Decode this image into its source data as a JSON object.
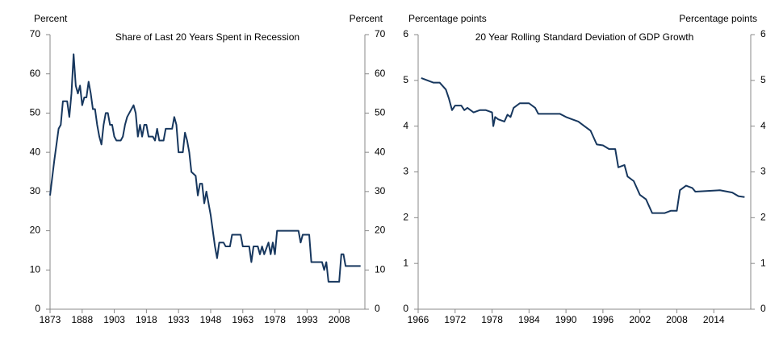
{
  "chart_data": [
    {
      "type": "line",
      "title": "Share of Last 20 Years Spent in Recession",
      "y_label": "Percent",
      "y2_label": "Percent",
      "color": "#17375e",
      "grid": false,
      "x": [
        1873,
        1875,
        1877,
        1878,
        1879,
        1881,
        1882,
        1883,
        1884,
        1885,
        1886,
        1887,
        1888,
        1889,
        1890,
        1891,
        1892,
        1893,
        1894,
        1895,
        1896,
        1897,
        1898,
        1899,
        1900,
        1901,
        1902,
        1903,
        1904,
        1906,
        1907,
        1908,
        1909,
        1910,
        1912,
        1913,
        1914,
        1915,
        1916,
        1917,
        1918,
        1919,
        1921,
        1922,
        1923,
        1924,
        1926,
        1927,
        1928,
        1930,
        1931,
        1932,
        1933,
        1935,
        1936,
        1937,
        1938,
        1939,
        1941,
        1942,
        1943,
        1944,
        1945,
        1946,
        1947,
        1948,
        1949,
        1950,
        1951,
        1952,
        1954,
        1955,
        1957,
        1958,
        1962,
        1963,
        1966,
        1967,
        1968,
        1970,
        1971,
        1972,
        1973,
        1975,
        1976,
        1977,
        1978,
        1979,
        1989,
        1990,
        1991,
        1994,
        1995,
        2000,
        2001,
        2002,
        2003,
        2008,
        2009,
        2010,
        2011,
        2018
      ],
      "values": [
        29,
        38,
        46,
        47,
        53,
        53,
        49,
        55,
        65,
        57,
        55,
        57,
        52,
        54,
        54,
        58,
        55,
        51,
        51,
        47,
        44,
        42,
        47,
        50,
        50,
        47,
        47,
        44,
        43,
        43,
        44,
        47,
        49,
        50,
        52,
        50,
        44,
        47,
        44,
        47,
        47,
        44,
        44,
        43,
        46,
        43,
        43,
        46,
        46,
        46,
        49,
        47,
        40,
        40,
        45,
        43,
        40,
        35,
        34,
        29,
        32,
        32,
        27,
        30,
        27,
        24,
        20,
        16,
        13,
        17,
        17,
        16,
        16,
        19,
        19,
        16,
        16,
        12,
        16,
        16,
        14,
        16,
        14,
        17,
        14,
        17,
        14,
        20,
        20,
        17,
        19,
        19,
        12,
        12,
        10,
        12,
        7,
        7,
        14,
        14,
        11,
        11
      ],
      "xlim": [
        1873,
        2020
      ],
      "xticks": [
        1873,
        1888,
        1903,
        1918,
        1933,
        1948,
        1963,
        1978,
        1993,
        2008
      ],
      "ylim": [
        0,
        70
      ],
      "yticks": [
        0,
        10,
        20,
        30,
        40,
        50,
        60,
        70
      ],
      "y2lim": [
        0,
        70
      ],
      "y2ticks": [
        0,
        10,
        20,
        30,
        40,
        50,
        60,
        70
      ]
    },
    {
      "type": "line",
      "title": "20 Year Rolling Standard Deviation  of GDP Growth",
      "y_label": "Percentage  points",
      "y2_label": "Percentage  points",
      "color": "#17375e",
      "grid": false,
      "x": [
        1966.5,
        1967.5,
        1968.5,
        1969.5,
        1970.5,
        1971,
        1971.5,
        1972,
        1973,
        1973.5,
        1974,
        1975,
        1976,
        1977,
        1978,
        1978.2,
        1978.5,
        1979,
        1980,
        1980.5,
        1981,
        1981.5,
        1982.5,
        1984,
        1985,
        1985.5,
        1989,
        1990,
        1991,
        1992,
        1993,
        1994,
        1995,
        1996,
        1997,
        1998,
        1998.5,
        1999.5,
        2000,
        2001,
        2002,
        2003,
        2004,
        2005,
        2006,
        2007,
        2008,
        2008.5,
        2009.5,
        2010.5,
        2011,
        2015,
        2017,
        2018,
        2019
      ],
      "values": [
        5.05,
        5.0,
        4.95,
        4.95,
        4.8,
        4.6,
        4.35,
        4.45,
        4.45,
        4.35,
        4.4,
        4.3,
        4.35,
        4.35,
        4.3,
        4.0,
        4.2,
        4.15,
        4.1,
        4.25,
        4.2,
        4.4,
        4.5,
        4.5,
        4.4,
        4.27,
        4.27,
        4.2,
        4.15,
        4.1,
        4.0,
        3.9,
        3.6,
        3.58,
        3.5,
        3.5,
        3.1,
        3.15,
        2.9,
        2.8,
        2.5,
        2.4,
        2.1,
        2.1,
        2.1,
        2.15,
        2.15,
        2.6,
        2.7,
        2.65,
        2.57,
        2.6,
        2.55,
        2.47,
        2.45
      ],
      "xlim": [
        1966,
        2020
      ],
      "xticks": [
        1966,
        1972,
        1978,
        1984,
        1990,
        1996,
        2002,
        2008,
        2014
      ],
      "ylim": [
        0,
        6
      ],
      "yticks": [
        0,
        1,
        2,
        3,
        4,
        5,
        6
      ],
      "y2lim": [
        0,
        6
      ],
      "y2ticks": [
        0,
        1,
        2,
        3,
        4,
        5,
        6
      ]
    }
  ]
}
